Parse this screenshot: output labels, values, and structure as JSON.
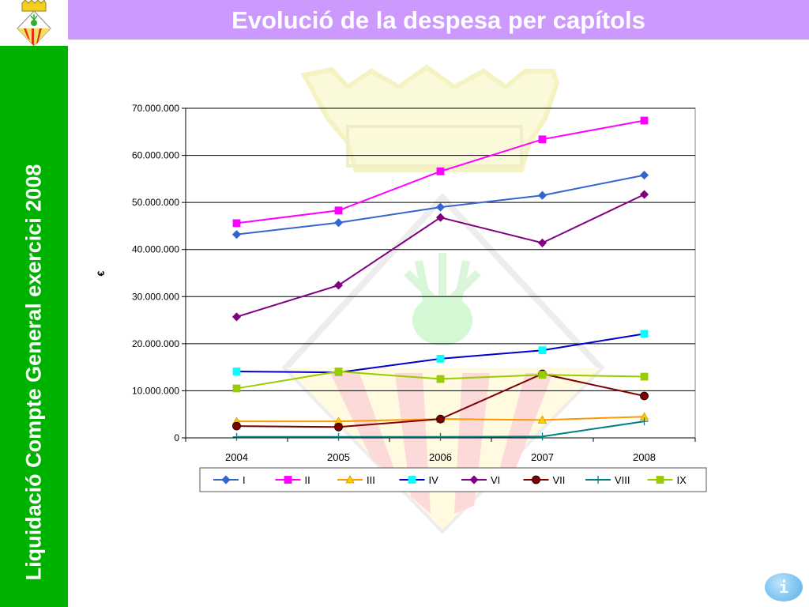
{
  "slide": {
    "title": "Evolució de la despesa per capítols",
    "sidebar_text": "Liquidació Compte General exercici 2008",
    "info_label": "i"
  },
  "colors": {
    "header": "#cc99ff",
    "sidebar": "#00b200"
  },
  "chart_data": {
    "type": "line",
    "title": "",
    "xlabel": "",
    "ylabel": "€",
    "categories": [
      "2004",
      "2005",
      "2006",
      "2007",
      "2008"
    ],
    "ylim": [
      0,
      70000000
    ],
    "yticks": [
      0,
      10000000,
      20000000,
      30000000,
      40000000,
      50000000,
      60000000,
      70000000
    ],
    "ytick_labels": [
      "0",
      "10.000.000",
      "20.000.000",
      "30.000.000",
      "40.000.000",
      "50.000.000",
      "60.000.000",
      "70.000.000"
    ],
    "grid": true,
    "legend": "bottom",
    "series": [
      {
        "name": "I",
        "color": "#3366cc",
        "marker": "diamond",
        "values": [
          43200000,
          45700000,
          49000000,
          51500000,
          55800000
        ]
      },
      {
        "name": "II",
        "color": "#ff00ff",
        "marker": "square",
        "values": [
          45600000,
          48300000,
          56600000,
          63400000,
          67400000
        ]
      },
      {
        "name": "III",
        "color": "#ff9900",
        "marker": "triangle",
        "values": [
          3500000,
          3500000,
          4000000,
          3800000,
          4500000
        ]
      },
      {
        "name": "IV",
        "color": "#0000cc",
        "marker": "square",
        "marker_color": "#00ffff",
        "values": [
          14100000,
          13900000,
          16800000,
          18600000,
          22100000
        ]
      },
      {
        "name": "VI",
        "color": "#800080",
        "marker": "diamond",
        "values": [
          25700000,
          32400000,
          46800000,
          41400000,
          51700000
        ]
      },
      {
        "name": "VII",
        "color": "#800000",
        "marker": "circle",
        "values": [
          2500000,
          2300000,
          4000000,
          13600000,
          8900000
        ]
      },
      {
        "name": "VIII",
        "color": "#008080",
        "marker": "plus",
        "values": [
          200000,
          200000,
          200000,
          300000,
          3500000
        ]
      },
      {
        "name": "IX",
        "color": "#99cc00",
        "marker": "square",
        "values": [
          10500000,
          14100000,
          12500000,
          13400000,
          13000000
        ]
      }
    ]
  }
}
